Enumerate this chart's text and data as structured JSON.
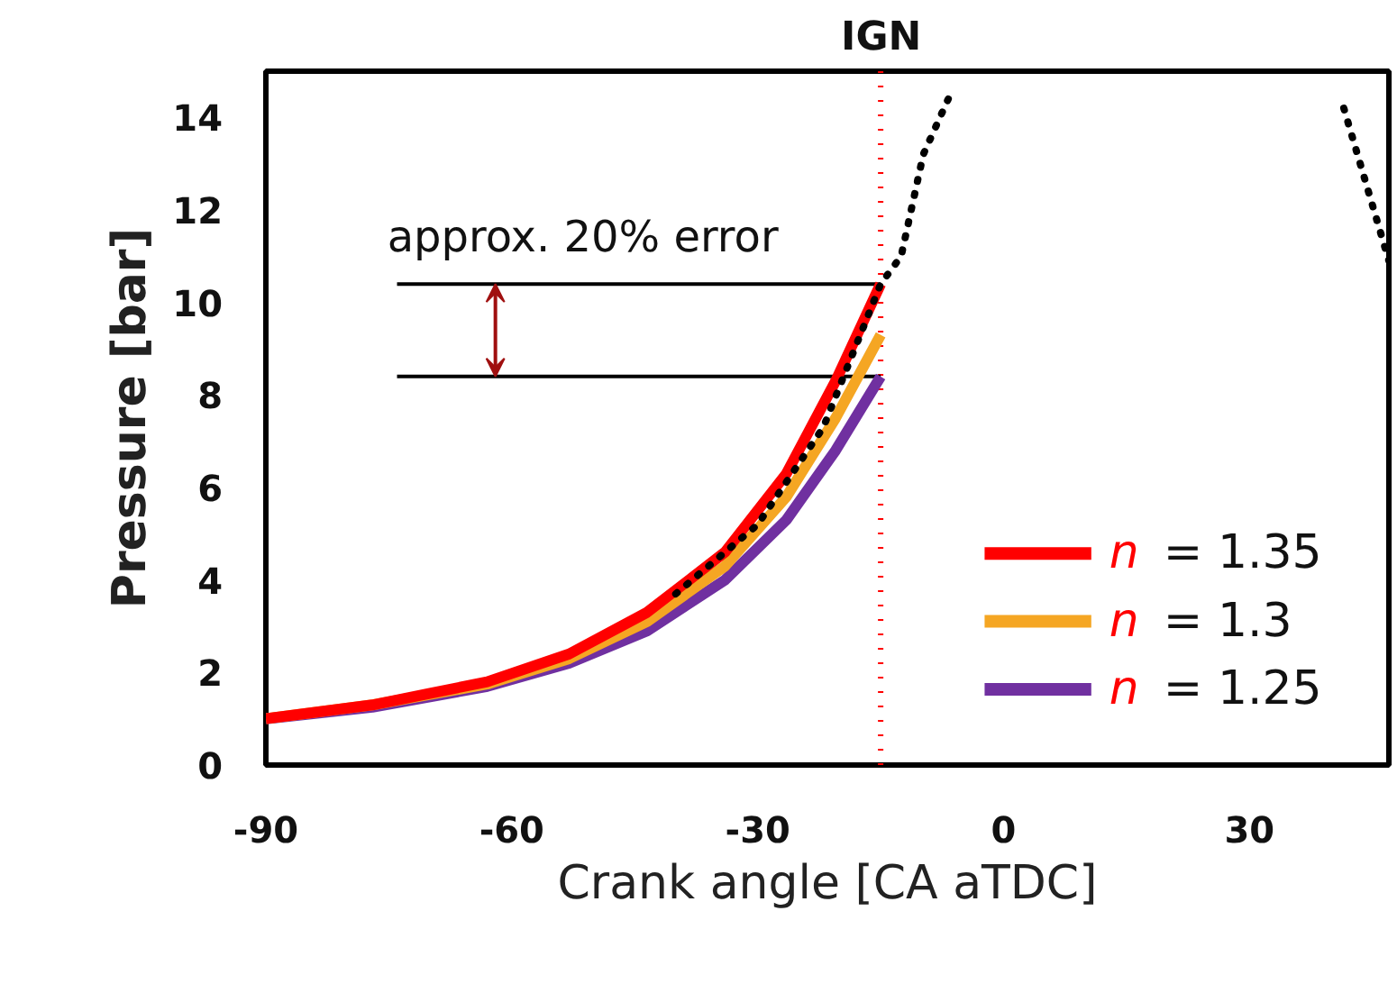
{
  "chart_data": {
    "type": "line",
    "xlabel": "Crank angle [CA aTDC]",
    "ylabel": "Pressure [bar]",
    "xlim": [
      -90,
      47
    ],
    "ylim": [
      0,
      15
    ],
    "xticks": [
      -90,
      -60,
      -30,
      0,
      30
    ],
    "yticks": [
      0,
      2,
      4,
      6,
      8,
      10,
      12,
      14
    ],
    "grid": false,
    "legend": "bottom right",
    "line_style": "solid",
    "marker": "none",
    "series": [
      {
        "x": [
          -40,
          -30,
          -22,
          -15,
          -12.5,
          -9.8,
          -6.5,
          null,
          41.5,
          47
        ],
        "values": [
          3.7,
          5.2,
          7.3,
          10.4,
          11,
          13.2,
          14.5,
          null,
          14.2,
          10.9
        ],
        "color": "#000000",
        "line_style": "dotted"
      },
      {
        "x": [
          -74,
          -15
        ],
        "values": [
          10.4,
          10.4
        ],
        "color": "#000000"
      },
      {
        "x": [
          -74,
          -15
        ],
        "values": [
          8.4,
          8.4
        ],
        "color": "#000000"
      },
      {
        "name": "n = 1.25",
        "x": [
          -90,
          -77,
          -63,
          -53,
          -43.5,
          -34,
          -26.5,
          -20.5,
          -15
        ],
        "values": [
          1.0,
          1.25,
          1.7,
          2.2,
          2.9,
          4.0,
          5.3,
          6.8,
          8.4
        ],
        "color": "#7030a0"
      },
      {
        "name": "n = 1.3",
        "x": [
          -90,
          -77,
          -63,
          -53,
          -43.5,
          -34,
          -26.5,
          -20.5,
          -15
        ],
        "values": [
          1.0,
          1.3,
          1.75,
          2.3,
          3.1,
          4.3,
          5.8,
          7.5,
          9.3
        ],
        "color": "#f5a623"
      },
      {
        "name": "n = 1.35",
        "x": [
          -90,
          -77,
          -63,
          -53,
          -43.5,
          -34,
          -26.5,
          -20.5,
          -15
        ],
        "values": [
          1.0,
          1.3,
          1.8,
          2.4,
          3.3,
          4.6,
          6.3,
          8.3,
          10.4
        ],
        "color": "#ff0000"
      }
    ],
    "ref_lines": [
      {
        "axis": "x",
        "value": -15,
        "label": "IGN",
        "color": "#ff0000",
        "line_style": "dotted"
      }
    ],
    "annotations": [
      {
        "text": "approx. 20% error",
        "x": -62,
        "y": 10.4
      }
    ]
  }
}
